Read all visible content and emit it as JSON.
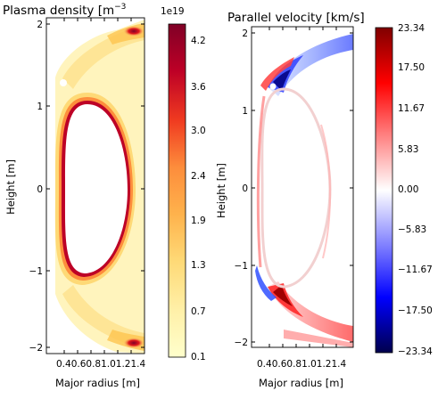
{
  "chart_data": [
    {
      "type": "heatmap",
      "title": "Plasma density [m",
      "title_superscript": "−3",
      "xlabel": "Major radius [m]",
      "ylabel": "Height [m]",
      "x_ticks": [
        "0.4",
        "0.6",
        "0.8",
        "1.0",
        "1.2",
        "1.4"
      ],
      "x_tick_text": "0.40.60.81.01.21.4",
      "y_ticks": [
        "−2",
        "−1",
        "0",
        "1",
        "2"
      ],
      "xlim": [
        0.25,
        1.55
      ],
      "ylim": [
        -2.1,
        2.05
      ],
      "colorbar": {
        "offset_label": "1e19",
        "ticks": [
          "4.2",
          "3.6",
          "3.0",
          "2.4",
          "1.9",
          "1.3",
          "0.7",
          "0.1"
        ],
        "tick_values": [
          4.2,
          3.6,
          3.0,
          2.4,
          1.9,
          1.3,
          0.7,
          0.1
        ],
        "range": [
          0.1,
          4.7
        ],
        "colormap": [
          "#ffffcc",
          "#fed976",
          "#feb24c",
          "#fd8d3c",
          "#fc4e2a",
          "#e31a1c",
          "#bd0026",
          "#800026"
        ]
      }
    },
    {
      "type": "heatmap",
      "title": "Parallel velocity [km/s]",
      "xlabel": "Major radius [m]",
      "ylabel": "Height [m]",
      "x_ticks": [
        "0.4",
        "0.6",
        "0.8",
        "1.0",
        "1.2",
        "1.4"
      ],
      "x_tick_text": "0.40.60.81.01.21.4",
      "y_ticks": [
        "−2",
        "−1",
        "0",
        "1",
        "2"
      ],
      "xlim": [
        0.25,
        1.55
      ],
      "ylim": [
        -2.1,
        2.05
      ],
      "colorbar": {
        "ticks": [
          "23.34",
          "17.50",
          "11.67",
          "5.83",
          "0.00",
          "−5.83",
          "−11.67",
          "−17.50",
          "−23.34"
        ],
        "tick_values": [
          23.34,
          17.5,
          11.67,
          5.83,
          0.0,
          -5.83,
          -11.67,
          -17.5,
          -23.34
        ],
        "range": [
          -23.34,
          23.34
        ],
        "colormap": [
          "#00004c",
          "#0000ff",
          "#8080ff",
          "#ffffff",
          "#ff8080",
          "#ff0000",
          "#800000"
        ]
      }
    }
  ]
}
